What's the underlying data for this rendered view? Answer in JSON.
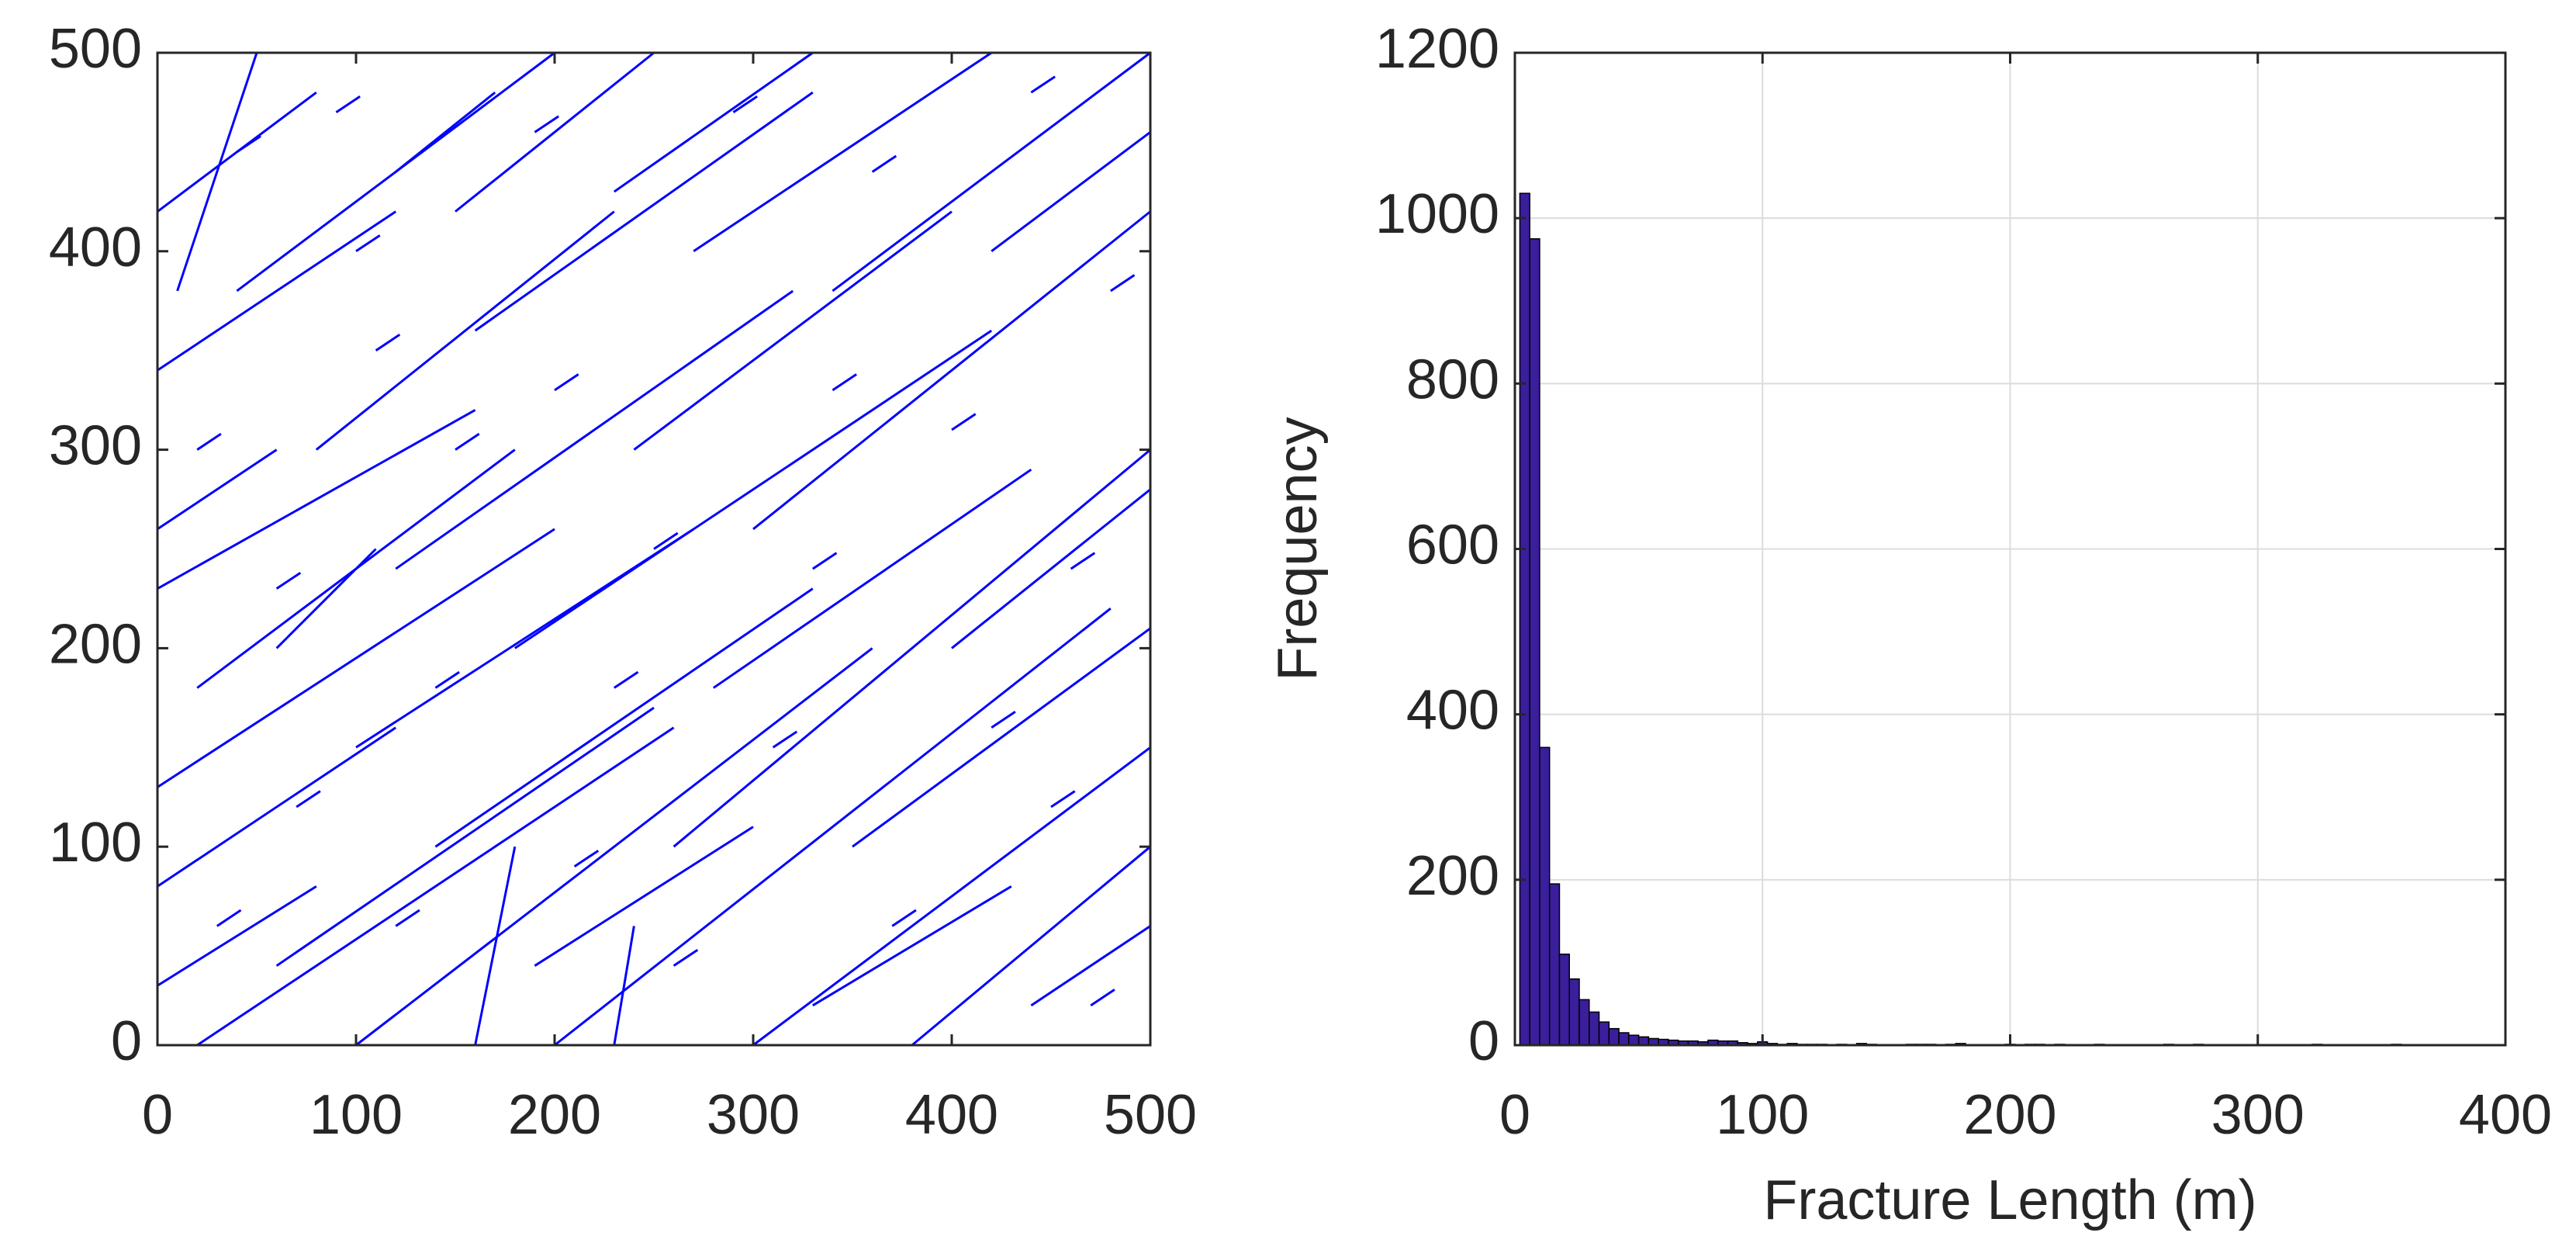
{
  "chart_data": [
    {
      "type": "segments",
      "color": "#0000ff",
      "xlim": [
        0,
        500
      ],
      "ylim": [
        0,
        500
      ],
      "xticks": [
        0,
        100,
        200,
        300,
        400,
        500
      ],
      "yticks": [
        0,
        100,
        200,
        300,
        400,
        500
      ],
      "grid": false,
      "segments": [
        [
          0,
          230,
          160,
          320
        ],
        [
          0,
          130,
          200,
          260
        ],
        [
          20,
          0,
          260,
          160
        ],
        [
          100,
          0,
          360,
          200
        ],
        [
          200,
          0,
          480,
          220
        ],
        [
          300,
          0,
          500,
          150
        ],
        [
          380,
          0,
          500,
          100
        ],
        [
          0,
          80,
          120,
          160
        ],
        [
          0,
          340,
          120,
          420
        ],
        [
          40,
          380,
          200,
          500
        ],
        [
          120,
          240,
          320,
          380
        ],
        [
          180,
          200,
          420,
          360
        ],
        [
          260,
          100,
          500,
          300
        ],
        [
          300,
          260,
          500,
          420
        ],
        [
          340,
          380,
          500,
          500
        ],
        [
          160,
          360,
          330,
          480
        ],
        [
          80,
          300,
          230,
          420
        ],
        [
          0,
          30,
          80,
          80
        ],
        [
          60,
          40,
          250,
          170
        ],
        [
          240,
          300,
          400,
          420
        ],
        [
          400,
          200,
          500,
          280
        ],
        [
          20,
          180,
          180,
          300
        ],
        [
          140,
          100,
          330,
          230
        ],
        [
          350,
          100,
          500,
          210
        ],
        [
          150,
          420,
          250,
          500
        ],
        [
          230,
          430,
          330,
          500
        ],
        [
          280,
          180,
          440,
          290
        ],
        [
          100,
          150,
          270,
          260
        ],
        [
          0,
          420,
          80,
          480
        ],
        [
          420,
          400,
          500,
          460
        ],
        [
          10,
          380,
          50,
          500
        ],
        [
          160,
          0,
          180,
          100
        ],
        [
          230,
          0,
          240,
          60
        ],
        [
          270,
          400,
          420,
          500
        ],
        [
          60,
          200,
          110,
          250
        ],
        [
          190,
          40,
          300,
          110
        ],
        [
          440,
          20,
          500,
          60
        ],
        [
          0,
          260,
          60,
          300
        ],
        [
          330,
          20,
          430,
          80
        ],
        [
          120,
          440,
          170,
          480
        ],
        [
          30,
          60,
          42,
          68
        ],
        [
          70,
          120,
          82,
          128
        ],
        [
          120,
          60,
          132,
          68
        ],
        [
          150,
          300,
          162,
          308
        ],
        [
          210,
          90,
          222,
          98
        ],
        [
          250,
          250,
          262,
          258
        ],
        [
          310,
          150,
          322,
          158
        ],
        [
          340,
          330,
          352,
          338
        ],
        [
          370,
          60,
          382,
          68
        ],
        [
          420,
          160,
          432,
          168
        ],
        [
          460,
          240,
          472,
          248
        ],
        [
          480,
          380,
          492,
          388
        ],
        [
          40,
          450,
          52,
          458
        ],
        [
          90,
          470,
          102,
          478
        ],
        [
          190,
          460,
          202,
          468
        ],
        [
          290,
          470,
          302,
          478
        ],
        [
          440,
          480,
          452,
          488
        ],
        [
          20,
          300,
          32,
          308
        ],
        [
          60,
          230,
          72,
          238
        ],
        [
          110,
          350,
          122,
          358
        ],
        [
          200,
          330,
          212,
          338
        ],
        [
          260,
          40,
          272,
          48
        ],
        [
          330,
          240,
          342,
          248
        ],
        [
          400,
          310,
          412,
          318
        ],
        [
          450,
          120,
          462,
          128
        ],
        [
          470,
          20,
          482,
          28
        ],
        [
          140,
          180,
          152,
          188
        ],
        [
          230,
          180,
          242,
          188
        ],
        [
          360,
          440,
          372,
          448
        ],
        [
          100,
          400,
          112,
          408
        ]
      ]
    },
    {
      "type": "histogram",
      "color": "#3a1e9c",
      "edgecolor": "#000000",
      "xlabel": "Fracture Length (m)",
      "ylabel": "Frequency",
      "xlim": [
        0,
        400
      ],
      "ylim": [
        0,
        1200
      ],
      "xticks": [
        0,
        100,
        200,
        300,
        400
      ],
      "yticks": [
        0,
        200,
        400,
        600,
        800,
        1000,
        1200
      ],
      "grid": true,
      "bins": [
        2,
        6,
        10,
        14,
        18,
        22,
        26,
        30,
        34,
        38,
        42,
        46,
        50,
        54,
        58,
        62,
        66,
        70,
        74,
        78,
        82,
        86,
        90,
        94,
        98,
        102,
        106,
        110,
        114,
        118,
        122,
        126,
        130,
        134,
        138,
        142,
        146,
        150,
        154,
        158,
        162,
        166,
        170,
        174,
        178,
        182,
        186,
        190,
        194,
        198,
        202,
        206,
        210,
        214,
        218,
        222,
        226,
        230,
        234,
        238,
        242,
        246,
        250,
        254,
        258,
        262,
        266,
        270,
        274,
        278,
        282,
        286,
        290,
        294,
        298,
        302,
        306,
        310,
        314,
        318,
        322,
        326,
        330,
        334,
        338,
        342,
        346,
        350,
        354,
        358,
        362
      ],
      "values": [
        1030,
        975,
        360,
        195,
        110,
        80,
        55,
        40,
        28,
        20,
        15,
        12,
        10,
        8,
        7,
        6,
        5,
        5,
        4,
        6,
        5,
        5,
        3,
        2,
        4,
        2,
        1,
        2,
        1,
        1,
        1,
        0,
        1,
        0,
        2,
        1,
        0,
        0,
        0,
        1,
        1,
        1,
        0,
        1,
        2,
        0,
        0,
        0,
        0,
        1,
        0,
        1,
        1,
        0,
        1,
        0,
        0,
        0,
        1,
        0,
        0,
        0,
        0,
        0,
        0,
        1,
        0,
        0,
        1,
        0,
        0,
        0,
        0,
        0,
        0,
        0,
        0,
        0,
        0,
        0,
        1,
        0,
        0,
        0,
        0,
        0,
        0,
        0,
        1,
        0
      ]
    }
  ]
}
